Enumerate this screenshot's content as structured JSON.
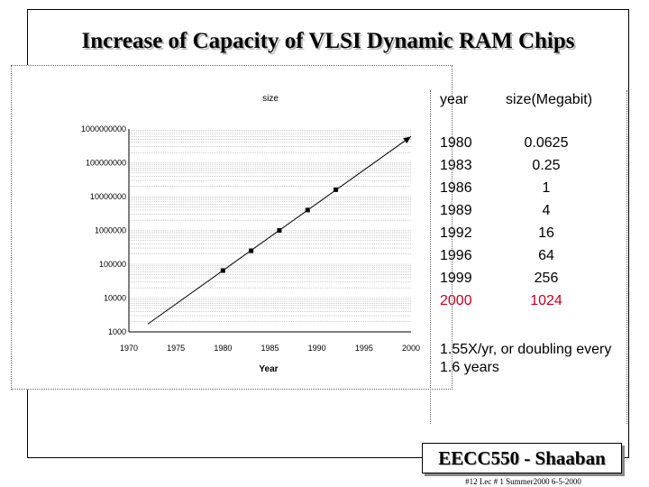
{
  "slide": {
    "title": "Increase of Capacity of VLSI Dynamic RAM Chips",
    "note": "1.55X/yr, or doubling every 1.6 years",
    "footer_box": "EECC550 - Shaaban",
    "footer_small": "#12  Lec # 1  Summer2000  6-5-2000"
  },
  "table": {
    "col1_header": "year",
    "col2_header": "size(Megabit)",
    "rows": [
      {
        "year": "1980",
        "size": "0.0625",
        "highlight": false
      },
      {
        "year": "1983",
        "size": "0.25",
        "highlight": false
      },
      {
        "year": "1986",
        "size": "1",
        "highlight": false
      },
      {
        "year": "1989",
        "size": "4",
        "highlight": false
      },
      {
        "year": "1992",
        "size": "16",
        "highlight": false
      },
      {
        "year": "1996",
        "size": "64",
        "highlight": false
      },
      {
        "year": "1999",
        "size": "256",
        "highlight": false
      },
      {
        "year": "2000",
        "size": "1024",
        "highlight": true
      }
    ],
    "highlight_color": "#c00020"
  },
  "chart_data": {
    "type": "scatter",
    "title": "size",
    "xlabel": "Year",
    "ylabel": "",
    "xlim": [
      1970,
      2000
    ],
    "ylim": [
      1000,
      1000000000
    ],
    "y_scale": "log",
    "x_ticks": [
      "1970",
      "1975",
      "1980",
      "1985",
      "1990",
      "1995",
      "2000"
    ],
    "y_ticks": [
      "1000",
      "10000",
      "100000",
      "1000000",
      "10000000",
      "100000000",
      "1000000000"
    ],
    "grid": true,
    "points": [
      {
        "x": 1980,
        "y": 65000
      },
      {
        "x": 1983,
        "y": 250000
      },
      {
        "x": 1986,
        "y": 1000000
      },
      {
        "x": 1989,
        "y": 4000000
      },
      {
        "x": 1992,
        "y": 16000000
      }
    ],
    "trend": {
      "x": [
        1972,
        2000
      ],
      "y": [
        1700,
        600000000
      ]
    }
  }
}
